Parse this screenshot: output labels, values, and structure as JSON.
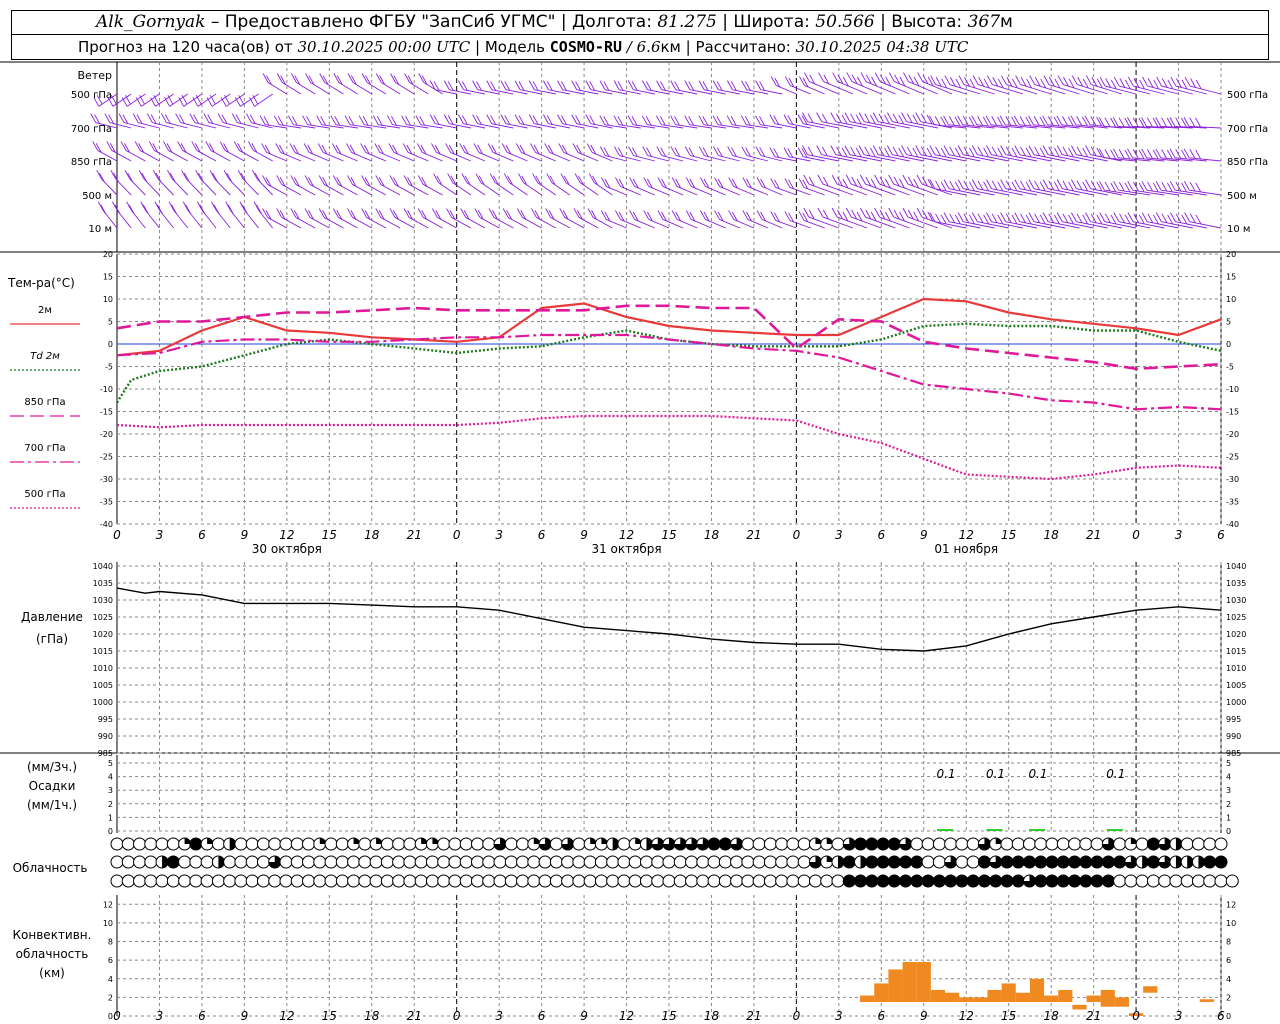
{
  "header": {
    "station": "Alk_Gornyak",
    "provider": "Предоставлено ФГБУ \"ЗапСиб УГМС\"",
    "lon_label": "Долгота:",
    "lon_value": "81.275",
    "lat_label": "Широта:",
    "lat_value": "50.566",
    "alt_label": "Высота:",
    "alt_value": "367",
    "alt_unit": "м",
    "forecast_label": "Прогноз на 120 часа(ов) от",
    "forecast_time": "30.10.2025 00:00 UTC",
    "model_label": "Модель",
    "model_name": "COSMO-RU",
    "model_res": "6.6",
    "model_unit": "км",
    "calc_label": "Рассчитано:",
    "calc_time": "30.10.2025 04:38 UTC"
  },
  "colors": {
    "wind": "#8b1fd9",
    "t2m": "#e83a3a",
    "td2m": "#1e7a1e",
    "t850": "#e0189a",
    "t700": "#e0189a",
    "t500": "#e0189a",
    "zero_line": "#2040e0",
    "pressure": "#000000",
    "precip": "#2ecc2e",
    "convective": "#f08a20",
    "grid": "#888888"
  },
  "labels": {
    "wind": "Ветер",
    "wind_levels": [
      "500 гПа",
      "700 гПа",
      "850 гПа",
      "500 м",
      "10 м"
    ],
    "temp": "Тем-ра(°C)",
    "legend": [
      "2м",
      "Td 2м",
      "850 гПа",
      "700 гПа",
      "500 гПа"
    ],
    "pressure": [
      "Давление",
      "(гПа)"
    ],
    "precip": [
      "(мм/3ч.)",
      "Осадки",
      "(мм/1ч.)"
    ],
    "cloud": "Облачность",
    "conv": [
      "Конвективн.",
      "облачность",
      "(км)"
    ],
    "dates": [
      "30 октября",
      "31 октября",
      "01 ноября"
    ]
  },
  "chart_data": [
    {
      "type": "line",
      "title": "Тем-ра(°C)",
      "x_unit": "hours from 30.10.2025 00:00 UTC",
      "x_ticks": [
        "0",
        "3",
        "6",
        "9",
        "12",
        "15",
        "18",
        "21",
        "0",
        "3",
        "6",
        "9",
        "12",
        "15",
        "18",
        "21",
        "0",
        "3",
        "6",
        "9",
        "12",
        "15",
        "18",
        "21",
        "0",
        "3",
        "6"
      ],
      "ylim": [
        -40,
        20
      ],
      "y_ticks": [
        20,
        15,
        10,
        5,
        0,
        -5,
        -10,
        -15,
        -20,
        -25,
        -30,
        -35,
        -40
      ],
      "series": [
        {
          "name": "2м",
          "x": [
            0,
            3,
            6,
            9,
            12,
            15,
            18,
            21,
            24,
            27,
            30,
            33,
            36,
            39,
            42,
            45,
            48,
            51,
            54,
            57,
            60,
            63,
            66,
            69,
            72,
            75,
            78
          ],
          "values": [
            -2.5,
            -1.5,
            3,
            6,
            3,
            2.5,
            1.5,
            1,
            0.5,
            1.5,
            8,
            9,
            6,
            4,
            3,
            2.5,
            2,
            2,
            6,
            10,
            9.5,
            7,
            5.5,
            4.5,
            3.5,
            2,
            5.5
          ]
        },
        {
          "name": "Td 2м",
          "x": [
            0,
            1,
            2,
            3,
            6,
            9,
            12,
            15,
            18,
            21,
            24,
            27,
            30,
            33,
            36,
            39,
            42,
            45,
            48,
            51,
            54,
            57,
            60,
            63,
            66,
            69,
            72,
            75,
            78
          ],
          "values": [
            -13,
            -8,
            -7,
            -6,
            -5,
            -2.5,
            0,
            1,
            0,
            -1,
            -2,
            -1,
            -0.5,
            1.5,
            3,
            1,
            0,
            -0.5,
            -0.5,
            -0.5,
            1,
            4,
            4.5,
            4,
            4,
            3,
            3,
            0.5,
            -1.5
          ]
        },
        {
          "name": "850 гПа",
          "x": [
            0,
            3,
            6,
            9,
            12,
            15,
            18,
            21,
            24,
            27,
            30,
            33,
            36,
            39,
            42,
            45,
            48,
            51,
            54,
            57,
            60,
            63,
            66,
            69,
            72,
            75,
            78
          ],
          "values": [
            3.5,
            5,
            5,
            6,
            7,
            7,
            7.5,
            8,
            7.5,
            7.5,
            7.5,
            7.5,
            8.5,
            8.5,
            8,
            8,
            -1,
            5.5,
            5,
            0.5,
            -1,
            -2,
            -3,
            -4,
            -5.5,
            -5,
            -4.5
          ]
        },
        {
          "name": "700 гПа",
          "x": [
            0,
            3,
            6,
            9,
            12,
            15,
            18,
            21,
            24,
            27,
            30,
            33,
            36,
            39,
            42,
            45,
            48,
            51,
            54,
            57,
            60,
            63,
            66,
            69,
            72,
            75,
            78
          ],
          "values": [
            -2.5,
            -2,
            0.5,
            1,
            1,
            0.5,
            0.5,
            1,
            1.5,
            1.5,
            2,
            2,
            2,
            1,
            0,
            -1,
            -1.5,
            -3,
            -6,
            -9,
            -10,
            -11,
            -12.5,
            -13,
            -14.5,
            -14,
            -14.5
          ]
        },
        {
          "name": "500 гПа",
          "x": [
            0,
            3,
            6,
            9,
            12,
            15,
            18,
            21,
            24,
            27,
            30,
            33,
            36,
            39,
            42,
            45,
            48,
            51,
            54,
            57,
            60,
            63,
            66,
            69,
            72,
            75,
            78
          ],
          "values": [
            -18,
            -18.5,
            -18,
            -18,
            -18,
            -18,
            -18,
            -18,
            -18,
            -17.5,
            -16.5,
            -16,
            -16,
            -16,
            -16,
            -16.5,
            -17,
            -20,
            -22,
            -25.5,
            -29,
            -29.5,
            -30,
            -29,
            -27.5,
            -27,
            -27.5
          ]
        }
      ]
    },
    {
      "type": "line",
      "title": "Давление (гПа)",
      "ylim": [
        985,
        1040
      ],
      "y_ticks": [
        1040,
        1035,
        1030,
        1025,
        1020,
        1015,
        1010,
        1005,
        1000,
        995,
        990,
        985
      ],
      "series": [
        {
          "name": "Давление",
          "x": [
            0,
            2,
            3,
            6,
            9,
            12,
            15,
            18,
            21,
            24,
            27,
            30,
            33,
            36,
            39,
            42,
            45,
            48,
            51,
            54,
            57,
            60,
            63,
            66,
            69,
            72,
            75,
            78
          ],
          "values": [
            1033.5,
            1032,
            1032.5,
            1031.5,
            1029,
            1029,
            1029,
            1028.5,
            1028,
            1028,
            1027,
            1024.5,
            1022,
            1021,
            1020,
            1018.5,
            1017.5,
            1017,
            1017,
            1015.5,
            1015,
            1016.5,
            1020,
            1023,
            1025,
            1027,
            1028,
            1027
          ]
        }
      ]
    },
    {
      "type": "bar",
      "title": "Осадки",
      "ylim": [
        0,
        5
      ],
      "y_ticks": [
        5,
        4,
        3,
        2,
        1,
        0
      ],
      "x": [
        58.5,
        62,
        65,
        70.5
      ],
      "values": [
        0.1,
        0.1,
        0.1,
        0.1
      ],
      "value_labels": [
        "0.1",
        "0.1",
        "0.1",
        "0.1"
      ]
    },
    {
      "type": "heatmap",
      "title": "Облачность",
      "note": "cloud cover per hour, three layers (top=high, middle=medium, bottom=low), fraction 0..1",
      "high": [
        0,
        0,
        0,
        0,
        0,
        0,
        0.25,
        1,
        0.25,
        0,
        0.5,
        0,
        0,
        0,
        0,
        0,
        0,
        0,
        0.25,
        0,
        0,
        0.25,
        0,
        0.25,
        0,
        0,
        0,
        0.25,
        0.25,
        0,
        0,
        0,
        0,
        0,
        0.75,
        0,
        0,
        0.25,
        0.75,
        0,
        0.75,
        0,
        0.25,
        0.25,
        0.5,
        0,
        0.25,
        0.5,
        0.75,
        0.75,
        0.75,
        0.75,
        0.75,
        1,
        1,
        0.75,
        0,
        0,
        0,
        0,
        0,
        0,
        0.25,
        0.25,
        0,
        0.75,
        1,
        1,
        1,
        1,
        0.75,
        0,
        0,
        0,
        0,
        0,
        0,
        0.75,
        0.25,
        0,
        0,
        0,
        0,
        0,
        0,
        0,
        0,
        0,
        0.75,
        0,
        0.25,
        0,
        1,
        0.75,
        0.5,
        0,
        0,
        0,
        0
      ],
      "mid": [
        0,
        0,
        0,
        0,
        0.5,
        1,
        0,
        0,
        0,
        0.5,
        0,
        0,
        0,
        0,
        0.75,
        0,
        0,
        0,
        0,
        0,
        0,
        0,
        0,
        0,
        0,
        0,
        0,
        0,
        0,
        0,
        0,
        0,
        0,
        0,
        0,
        0,
        0,
        0,
        0,
        0,
        0,
        0,
        0,
        0,
        0,
        0,
        0,
        0,
        0,
        0,
        0,
        0,
        0,
        0,
        0,
        0,
        0,
        0,
        0,
        0,
        0,
        0,
        0.75,
        0.25,
        0.5,
        1,
        0.5,
        1,
        1,
        1,
        1,
        1,
        0,
        0,
        0.75,
        0,
        0,
        1,
        0.75,
        1,
        1,
        1,
        1,
        1,
        1,
        1,
        1,
        1,
        1,
        1,
        0.75,
        0.5,
        1,
        0.75,
        0.5,
        0.5,
        0.5,
        1,
        1
      ],
      "low": [
        0,
        0,
        0,
        0,
        0,
        0,
        0,
        0,
        0,
        0,
        0,
        0,
        0,
        0,
        0,
        0,
        0,
        0,
        0,
        0,
        0,
        0,
        0,
        0,
        0,
        0,
        0,
        0,
        0,
        0,
        0,
        0,
        0,
        0,
        0,
        0,
        0,
        0,
        0,
        0,
        0,
        0,
        0,
        0,
        0,
        0,
        0,
        0,
        0,
        0,
        0,
        0,
        0,
        0,
        0,
        0,
        0,
        0,
        0,
        0,
        0,
        0,
        0,
        0,
        0,
        1,
        1,
        1,
        1,
        1,
        1,
        1,
        1,
        1,
        1,
        1,
        1,
        1,
        1,
        1,
        1,
        0.75,
        1,
        1,
        1,
        1,
        1,
        1,
        1,
        0,
        0,
        0,
        0,
        0,
        0,
        0,
        0,
        0,
        0,
        0
      ]
    },
    {
      "type": "bar",
      "title": "Конвективн. облачность (км)",
      "ylim": [
        0,
        13
      ],
      "y_ticks": [
        12,
        10,
        8,
        6,
        4,
        2,
        0
      ],
      "bars": [
        {
          "x": 53,
          "base": 1.5,
          "top": 2.2
        },
        {
          "x": 54,
          "base": 1.5,
          "top": 3.5
        },
        {
          "x": 55,
          "base": 1.5,
          "top": 5
        },
        {
          "x": 56,
          "base": 1.5,
          "top": 5.8
        },
        {
          "x": 57,
          "base": 1.5,
          "top": 5.8
        },
        {
          "x": 58,
          "base": 1.5,
          "top": 2.8
        },
        {
          "x": 59,
          "base": 1.5,
          "top": 2.5
        },
        {
          "x": 60,
          "base": 1.5,
          "top": 2
        },
        {
          "x": 61,
          "base": 1.5,
          "top": 2
        },
        {
          "x": 62,
          "base": 1.5,
          "top": 2.8
        },
        {
          "x": 63,
          "base": 1.5,
          "top": 3.5
        },
        {
          "x": 64,
          "base": 1.5,
          "top": 2.5
        },
        {
          "x": 65,
          "base": 1.5,
          "top": 4
        },
        {
          "x": 66,
          "base": 1.5,
          "top": 2.2
        },
        {
          "x": 67,
          "base": 1.5,
          "top": 2.8
        },
        {
          "x": 68,
          "base": 0.7,
          "top": 1.2
        },
        {
          "x": 69,
          "base": 1.5,
          "top": 2.2
        },
        {
          "x": 70,
          "base": 1,
          "top": 2.8
        },
        {
          "x": 71,
          "base": 1,
          "top": 2
        },
        {
          "x": 72,
          "base": 0,
          "top": 0.3
        },
        {
          "x": 73,
          "base": 2.5,
          "top": 3.2
        },
        {
          "x": 77,
          "base": 1.5,
          "top": 1.8
        }
      ]
    }
  ]
}
